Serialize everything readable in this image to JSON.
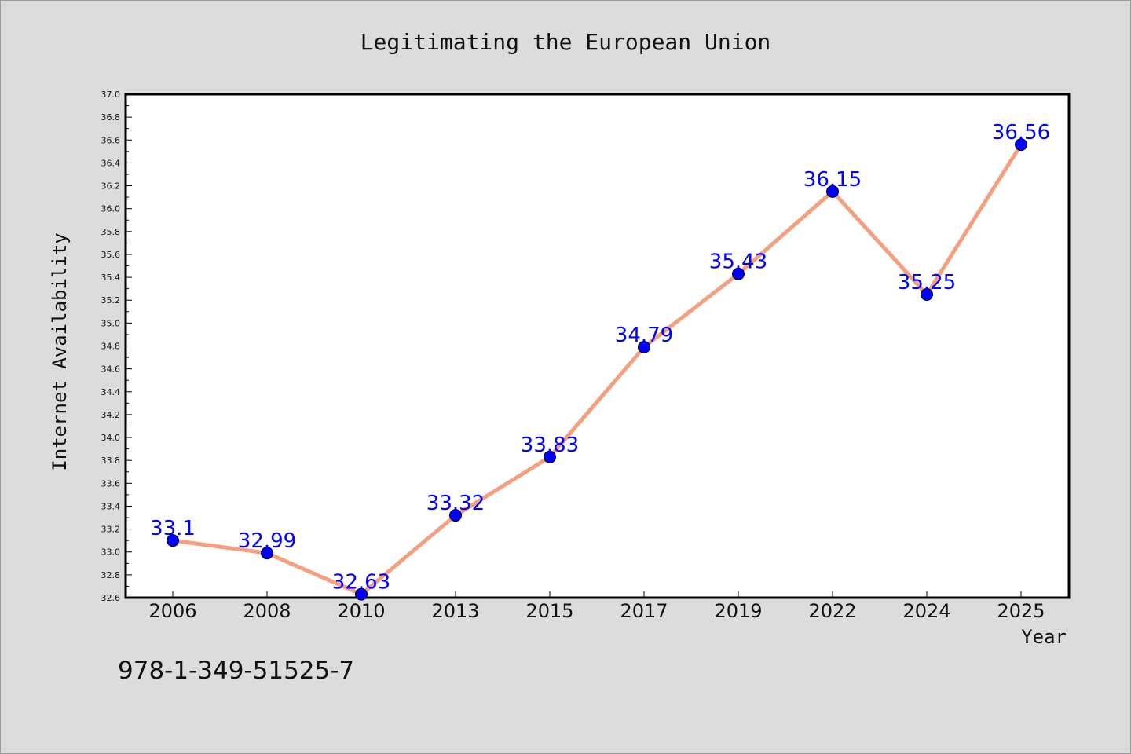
{
  "chart_data": {
    "type": "line",
    "title": "Legitimating the European Union",
    "xlabel": "Year",
    "ylabel": "Internet Availability",
    "categories": [
      "2006",
      "2008",
      "2010",
      "2013",
      "2015",
      "2017",
      "2019",
      "2022",
      "2024",
      "2025"
    ],
    "series": [
      {
        "values": [
          33.1,
          32.99,
          32.63,
          33.32,
          33.83,
          34.79,
          35.43,
          36.15,
          35.25,
          36.56
        ],
        "labels": [
          "33.1",
          "32.99",
          "32.63",
          "33.32",
          "33.83",
          "34.79",
          "35.43",
          "36.15",
          "35.25",
          "36.56"
        ],
        "line_color": "#f4a07e",
        "marker_color": "#0000ff"
      }
    ],
    "ylim": [
      32.6,
      37.0
    ],
    "yticks": [
      "32.6",
      "32.8",
      "33.0",
      "33.2",
      "33.4",
      "33.6",
      "33.8",
      "34.0",
      "34.2",
      "34.4",
      "34.6",
      "34.8",
      "35.0",
      "35.2",
      "35.4",
      "35.6",
      "35.8",
      "36.0",
      "36.2",
      "36.4",
      "36.6",
      "36.8",
      "37.0"
    ],
    "grid": false,
    "legend": "none",
    "label_color": "#0000ff",
    "plot_background": "#ffffff",
    "figure_background": "#dcdcdc"
  },
  "footnote": "978-1-349-51525-7"
}
